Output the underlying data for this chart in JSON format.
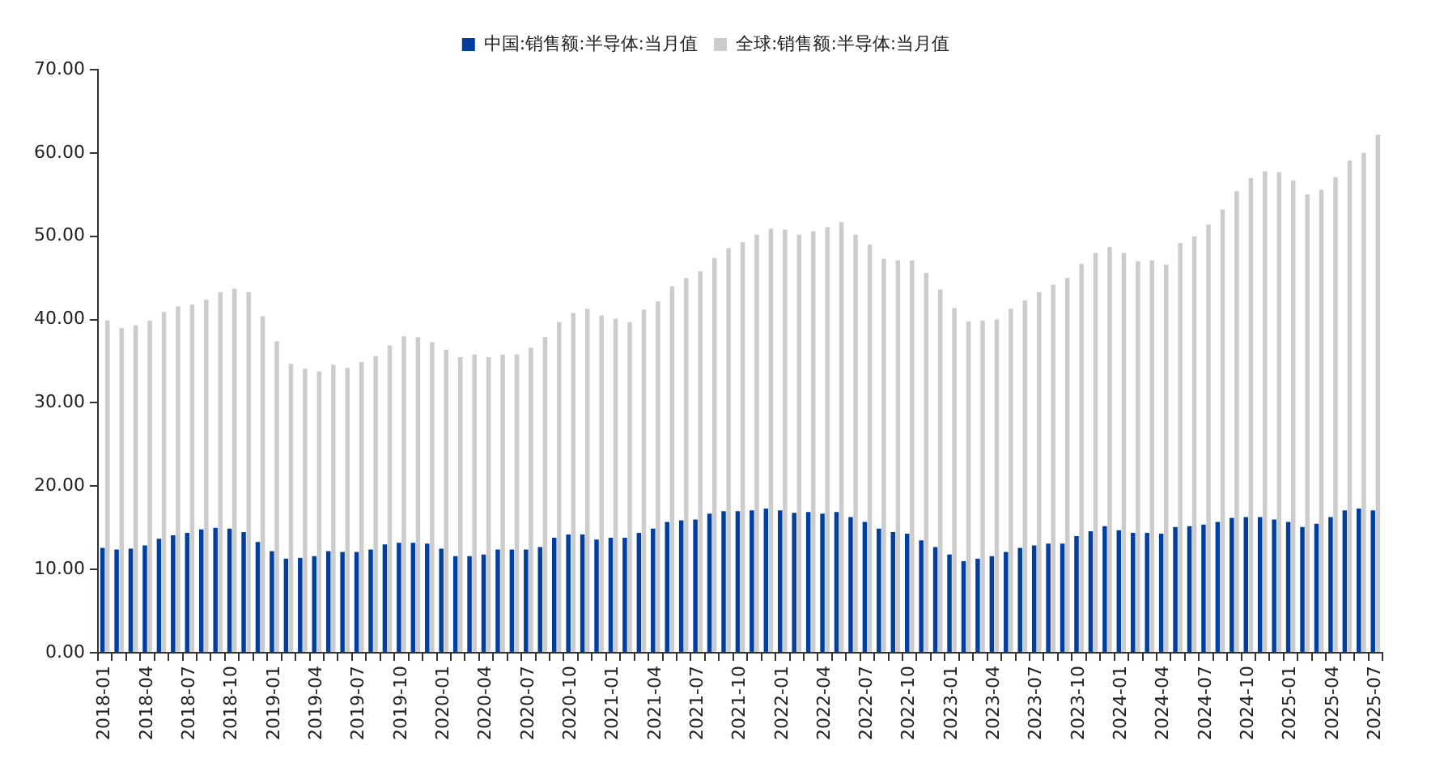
{
  "chart_data": {
    "type": "bar",
    "categories": [
      "2018-01",
      null,
      null,
      "2018-04",
      null,
      null,
      "2018-07",
      null,
      null,
      "2018-10",
      null,
      null,
      "2019-01",
      null,
      null,
      "2019-04",
      null,
      null,
      "2019-07",
      null,
      null,
      "2019-10",
      null,
      null,
      "2020-01",
      null,
      null,
      "2020-04",
      null,
      null,
      "2020-07",
      null,
      null,
      "2020-10",
      null,
      null,
      "2021-01",
      null,
      null,
      "2021-04",
      null,
      null,
      "2021-07",
      null,
      null,
      "2021-10",
      null,
      null,
      "2022-01",
      null,
      null,
      "2022-04",
      null,
      null,
      "2022-07",
      null,
      null,
      "2022-10",
      null,
      null,
      "2023-01",
      null,
      null,
      "2023-04",
      null,
      null,
      "2023-07",
      null,
      null,
      "2023-10",
      null,
      null,
      "2024-01",
      null,
      null,
      "2024-04",
      null,
      null,
      "2024-07",
      null,
      null,
      "2024-10",
      null,
      null,
      "2025-01",
      null,
      null,
      "2025-04",
      null,
      null,
      "2025-07"
    ],
    "series": [
      {
        "name": "中国:销售额:半导体:当月值",
        "color": "#003f9e",
        "values": [
          12.6,
          12.4,
          12.5,
          12.9,
          13.7,
          14.1,
          14.4,
          14.8,
          15.0,
          14.9,
          14.5,
          13.3,
          12.2,
          11.3,
          11.4,
          11.6,
          12.2,
          12.1,
          12.1,
          12.4,
          13.0,
          13.2,
          13.2,
          13.1,
          12.5,
          11.6,
          11.6,
          11.8,
          12.4,
          12.4,
          12.4,
          12.7,
          13.8,
          14.2,
          14.2,
          13.6,
          13.8,
          13.8,
          14.4,
          14.9,
          15.7,
          15.9,
          16.0,
          16.7,
          17.0,
          17.0,
          17.1,
          17.3,
          17.1,
          16.8,
          16.9,
          16.7,
          16.9,
          16.3,
          15.7,
          14.9,
          14.5,
          14.3,
          13.5,
          12.7,
          11.8,
          11.0,
          11.3,
          11.6,
          12.1,
          12.6,
          12.9,
          13.1,
          13.1,
          14.0,
          14.6,
          15.2,
          14.7,
          14.4,
          14.4,
          14.3,
          15.1,
          15.2,
          15.4,
          15.7,
          16.2,
          16.3,
          16.3,
          16.0,
          15.7,
          15.1,
          15.5,
          16.3,
          17.1,
          17.3,
          17.1
        ]
      },
      {
        "name": "全球:销售额:半导体:当月值",
        "color": "#cccccc",
        "values": [
          39.9,
          39.0,
          39.3,
          39.9,
          40.9,
          41.6,
          41.8,
          42.4,
          43.3,
          43.7,
          43.3,
          40.4,
          37.4,
          34.7,
          34.1,
          33.8,
          34.6,
          34.2,
          34.9,
          35.6,
          36.9,
          38.0,
          37.9,
          37.3,
          36.4,
          35.5,
          35.8,
          35.5,
          35.8,
          35.8,
          36.6,
          37.9,
          39.7,
          40.8,
          41.3,
          40.5,
          40.1,
          39.7,
          41.2,
          42.2,
          44.0,
          45.0,
          45.8,
          47.4,
          48.6,
          49.3,
          50.2,
          50.9,
          50.8,
          50.2,
          50.6,
          51.1,
          51.7,
          50.2,
          49.0,
          47.3,
          47.1,
          47.1,
          45.6,
          43.6,
          41.4,
          39.8,
          39.9,
          40.0,
          41.3,
          42.3,
          43.3,
          44.2,
          45.0,
          46.7,
          48.0,
          48.7,
          48.0,
          47.0,
          47.1,
          46.6,
          49.2,
          50.0,
          51.4,
          53.2,
          55.4,
          57.0,
          57.8,
          57.7,
          56.7,
          55.0,
          55.6,
          57.1,
          59.1,
          60.0,
          62.2
        ]
      }
    ],
    "ylim": [
      0,
      70
    ],
    "yticks": [
      {
        "value": 0,
        "label": "0.00"
      },
      {
        "value": 10,
        "label": "10.00"
      },
      {
        "value": 20,
        "label": "20.00"
      },
      {
        "value": 30,
        "label": "30.00"
      },
      {
        "value": 40,
        "label": "40.00"
      },
      {
        "value": 50,
        "label": "50.00"
      },
      {
        "value": 60,
        "label": "60.00"
      },
      {
        "value": 70,
        "label": "70.00"
      }
    ],
    "grid": false,
    "legend": "top"
  }
}
